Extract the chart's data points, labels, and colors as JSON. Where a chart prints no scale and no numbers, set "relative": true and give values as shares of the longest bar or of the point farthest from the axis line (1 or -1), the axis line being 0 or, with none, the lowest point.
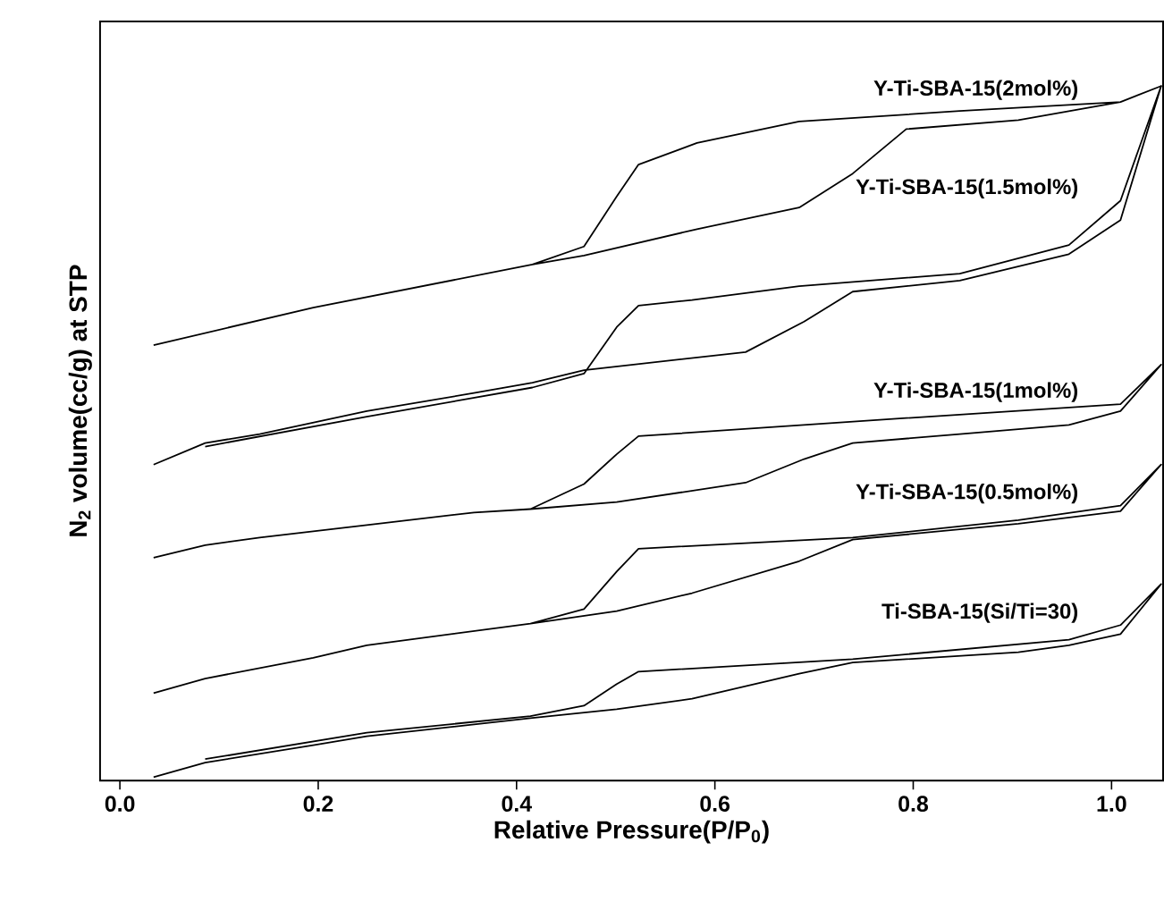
{
  "chart_data": {
    "type": "line",
    "relative": true,
    "xlabel": "Relative Pressure(P/P$_{0}$)",
    "ylabel": "N$_{2}$ volume(cc/g) at STP",
    "xlim": [
      -0.02,
      1.052
    ],
    "xticks": [
      {
        "value": 0,
        "label": "0.0"
      },
      {
        "value": 0.2,
        "label": "0.2"
      },
      {
        "value": 0.4,
        "label": "0.4"
      },
      {
        "value": 0.6,
        "label": "0.6"
      },
      {
        "value": 0.8,
        "label": "0.8"
      },
      {
        "value": 1.0,
        "label": "1.0"
      }
    ],
    "tick_labels": "x",
    "grid": false,
    "legend": false,
    "marker": "none",
    "line_style": "solid",
    "series": [
      {
        "name": "Y-Ti-SBA-15(2mol%)",
        "color": "#000000",
        "x": [
          0.034,
          0.195,
          0.416,
          0.468,
          0.582,
          0.685,
          0.739,
          0.793,
          0.906,
          1.009,
          1.05,
          1.009,
          0.847,
          0.685,
          0.582,
          0.523,
          0.501,
          0.468,
          0.416
        ],
        "values": [
          0.627,
          0.681,
          0.743,
          0.756,
          0.794,
          0.825,
          0.874,
          0.938,
          0.951,
          0.977,
          1.0,
          0.977,
          0.964,
          0.949,
          0.918,
          0.887,
          0.841,
          0.769,
          0.743
        ]
      },
      {
        "name": "Y-Ti-SBA-15(1.5mol%)",
        "color": "#000000",
        "x": [
          0.034,
          0.086,
          0.141,
          0.249,
          0.357,
          0.416,
          0.468,
          0.631,
          0.69,
          0.739,
          0.847,
          0.957,
          1.009,
          1.05,
          1.009,
          0.957,
          0.847,
          0.685,
          0.577,
          0.523,
          0.501,
          0.468,
          0.416,
          0.249,
          0.086
        ],
        "values": [
          0.455,
          0.486,
          0.499,
          0.532,
          0.558,
          0.573,
          0.591,
          0.617,
          0.661,
          0.704,
          0.72,
          0.758,
          0.807,
          1.0,
          0.835,
          0.771,
          0.73,
          0.712,
          0.692,
          0.684,
          0.653,
          0.586,
          0.566,
          0.524,
          0.481
        ]
      },
      {
        "name": "Y-Ti-SBA-15(1mol%)",
        "color": "#000000",
        "x": [
          0.034,
          0.086,
          0.141,
          0.249,
          0.357,
          0.414,
          0.501,
          0.631,
          0.69,
          0.739,
          0.847,
          0.957,
          1.009,
          1.05,
          1.009,
          0.793,
          0.523,
          0.501,
          0.468,
          0.414
        ],
        "values": [
          0.321,
          0.339,
          0.35,
          0.368,
          0.386,
          0.391,
          0.401,
          0.429,
          0.463,
          0.486,
          0.499,
          0.512,
          0.532,
          0.599,
          0.542,
          0.522,
          0.496,
          0.47,
          0.427,
          0.391
        ]
      },
      {
        "name": "Y-Ti-SBA-15(0.5mol%)",
        "color": "#000000",
        "x": [
          0.034,
          0.086,
          0.195,
          0.249,
          0.414,
          0.501,
          0.577,
          0.685,
          0.739,
          0.906,
          1.009,
          1.05,
          1.009,
          0.906,
          0.739,
          0.523,
          0.501,
          0.468,
          0.414
        ],
        "values": [
          0.126,
          0.147,
          0.177,
          0.195,
          0.226,
          0.244,
          0.27,
          0.316,
          0.347,
          0.37,
          0.388,
          0.455,
          0.396,
          0.375,
          0.35,
          0.334,
          0.301,
          0.247,
          0.226
        ]
      },
      {
        "name": "Ti-SBA-15(Si/Ti=30)",
        "color": "#000000",
        "x": [
          0.034,
          0.086,
          0.195,
          0.249,
          0.414,
          0.501,
          0.577,
          0.685,
          0.739,
          0.906,
          0.957,
          1.009,
          1.05,
          1.009,
          0.957,
          0.739,
          0.523,
          0.501,
          0.468,
          0.414,
          0.249,
          0.086
        ],
        "values": [
          0.005,
          0.026,
          0.051,
          0.064,
          0.09,
          0.103,
          0.118,
          0.154,
          0.17,
          0.185,
          0.195,
          0.211,
          0.283,
          0.224,
          0.203,
          0.175,
          0.157,
          0.139,
          0.108,
          0.093,
          0.069,
          0.031
        ]
      }
    ]
  }
}
